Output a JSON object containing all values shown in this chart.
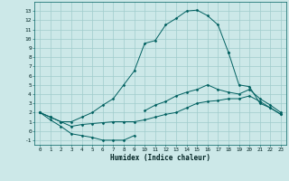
{
  "xlabel": "Humidex (Indice chaleur)",
  "bg_color": "#cce8e8",
  "line_color": "#006060",
  "grid_color": "#a0cccc",
  "x_values": [
    0,
    1,
    2,
    3,
    4,
    5,
    6,
    7,
    8,
    9,
    10,
    11,
    12,
    13,
    14,
    15,
    16,
    17,
    18,
    19,
    20,
    21,
    22,
    23
  ],
  "line1_y": [
    2.0,
    1.2,
    0.5,
    -0.3,
    -0.5,
    -0.7,
    -1.0,
    -1.0,
    -1.0,
    -0.5,
    null,
    null,
    null,
    null,
    null,
    null,
    null,
    null,
    null,
    null,
    null,
    null,
    null,
    null
  ],
  "line2_y": [
    2.0,
    1.5,
    1.0,
    0.5,
    0.7,
    0.8,
    0.9,
    1.0,
    1.0,
    1.0,
    1.2,
    1.5,
    1.8,
    2.0,
    2.5,
    3.0,
    3.2,
    3.3,
    3.5,
    3.5,
    3.8,
    3.2,
    2.5,
    1.8
  ],
  "line3_y": [
    2.0,
    1.5,
    1.0,
    1.0,
    1.5,
    2.0,
    2.8,
    3.5,
    5.0,
    6.5,
    9.5,
    9.8,
    11.5,
    12.2,
    13.0,
    13.1,
    12.5,
    11.5,
    8.5,
    null,
    null,
    null,
    null,
    null
  ],
  "line3b_y": [
    null,
    null,
    null,
    null,
    null,
    null,
    null,
    null,
    null,
    null,
    null,
    null,
    null,
    null,
    null,
    null,
    null,
    null,
    8.5,
    5.0,
    4.8,
    3.0,
    2.5,
    1.8
  ],
  "line4_y": [
    null,
    null,
    null,
    null,
    null,
    null,
    null,
    null,
    null,
    null,
    2.2,
    2.8,
    3.2,
    3.8,
    4.2,
    4.5,
    5.0,
    4.5,
    4.2,
    4.0,
    4.5,
    3.5,
    2.8,
    2.0
  ],
  "ylim": [
    -1.5,
    14.0
  ],
  "xlim": [
    -0.5,
    23.5
  ],
  "yticks": [
    -1,
    0,
    1,
    2,
    3,
    4,
    5,
    6,
    7,
    8,
    9,
    10,
    11,
    12,
    13
  ],
  "xticks": [
    0,
    1,
    2,
    3,
    4,
    5,
    6,
    7,
    8,
    9,
    10,
    11,
    12,
    13,
    14,
    15,
    16,
    17,
    18,
    19,
    20,
    21,
    22,
    23
  ]
}
